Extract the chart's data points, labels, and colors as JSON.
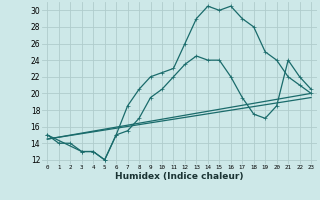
{
  "xlabel": "Humidex (Indice chaleur)",
  "bg_color": "#cde8e8",
  "grid_color": "#b0cccc",
  "line_color": "#1a6b6b",
  "xlim": [
    -0.5,
    23.5
  ],
  "ylim": [
    11.5,
    31
  ],
  "xticks": [
    0,
    1,
    2,
    3,
    4,
    5,
    6,
    7,
    8,
    9,
    10,
    11,
    12,
    13,
    14,
    15,
    16,
    17,
    18,
    19,
    20,
    21,
    22,
    23
  ],
  "yticks": [
    12,
    14,
    16,
    18,
    20,
    22,
    24,
    26,
    28,
    30
  ],
  "curve1_x": [
    0,
    1,
    2,
    3,
    4,
    5,
    6,
    7,
    8,
    9,
    10,
    11,
    12,
    13,
    14,
    15,
    16,
    17,
    18,
    19,
    20,
    21,
    22,
    23
  ],
  "curve1_y": [
    15,
    14,
    14,
    13,
    13,
    12,
    15,
    18.5,
    20.5,
    22,
    22.5,
    23,
    26,
    29,
    30.5,
    30,
    30.5,
    29,
    28,
    25,
    24,
    22,
    21,
    20
  ],
  "line1_x": [
    0,
    23
  ],
  "line1_y": [
    14.5,
    19.5
  ],
  "line2_x": [
    0,
    23
  ],
  "line2_y": [
    14.5,
    20
  ],
  "curve2_x": [
    0,
    3,
    4,
    5,
    6,
    7,
    8,
    9,
    10,
    11,
    12,
    13,
    14,
    15,
    16,
    17,
    18,
    19,
    20,
    21,
    22,
    23
  ],
  "curve2_y": [
    15,
    13,
    13,
    12,
    15,
    15.5,
    17,
    19.5,
    20.5,
    22,
    23.5,
    24.5,
    24,
    24,
    22,
    19.5,
    17.5,
    17,
    18.5,
    24,
    22,
    20.5
  ]
}
